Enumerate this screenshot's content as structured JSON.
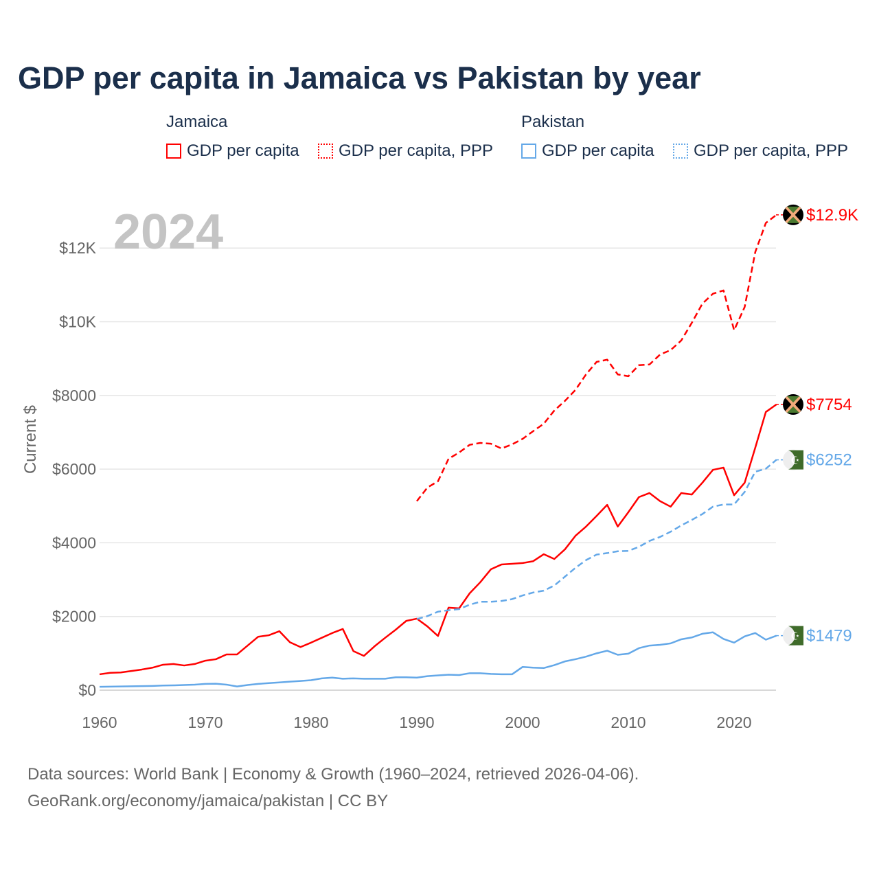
{
  "title": "GDP per capita in Jamaica vs Pakistan by year",
  "legend": {
    "jamaica": "Jamaica",
    "pakistan": "Pakistan",
    "gdp": "GDP per capita",
    "ppp": "GDP per capita, PPP"
  },
  "source": {
    "line1": "Data sources: World Bank | Economy & Growth (1960–2024, retrieved 2026-04-06).",
    "line2": "GeoRank.org/economy/jamaica/pakistan | CC BY"
  },
  "colors": {
    "jamaica": "#ff0000",
    "pakistan": "#64a8e8"
  },
  "chart_data": {
    "type": "line",
    "title": "GDP per capita in Jamaica vs Pakistan by year",
    "ylabel": "Current $",
    "xlabel": "",
    "year_label": "2024",
    "xlim": [
      1960,
      2024
    ],
    "ylim": [
      0,
      13000
    ],
    "xticks": [
      "1960",
      "1970",
      "1980",
      "1990",
      "2000",
      "2010",
      "2020"
    ],
    "yticks": [
      {
        "v": 0,
        "l": "$0"
      },
      {
        "v": 2000,
        "l": "$2000"
      },
      {
        "v": 4000,
        "l": "$4000"
      },
      {
        "v": 6000,
        "l": "$6000"
      },
      {
        "v": 8000,
        "l": "$8000"
      },
      {
        "v": 10000,
        "l": "$10K"
      },
      {
        "v": 12000,
        "l": "$12K"
      }
    ],
    "series": [
      {
        "name": "Jamaica GDP per capita",
        "country": "jamaica",
        "dashed": false,
        "start": 1960,
        "end_label": "$7754",
        "values": [
          430,
          470,
          480,
          520,
          560,
          610,
          690,
          710,
          670,
          710,
          800,
          840,
          970,
          970,
          1210,
          1450,
          1490,
          1600,
          1300,
          1170,
          1290,
          1420,
          1550,
          1660,
          1060,
          930,
          1190,
          1420,
          1640,
          1880,
          1940,
          1730,
          1470,
          2240,
          2220,
          2630,
          2930,
          3280,
          3410,
          3430,
          3450,
          3500,
          3690,
          3560,
          3820,
          4190,
          4440,
          4730,
          5030,
          4440,
          4830,
          5240,
          5350,
          5130,
          4980,
          5350,
          5310,
          5630,
          5980,
          6040,
          5290,
          5630,
          6580,
          7550,
          7754
        ]
      },
      {
        "name": "Jamaica GDP per capita, PPP",
        "country": "jamaica",
        "dashed": true,
        "start": 1990,
        "end_label": "$12.9K",
        "values": [
          5130,
          5500,
          5670,
          6280,
          6450,
          6660,
          6710,
          6690,
          6560,
          6670,
          6820,
          7030,
          7230,
          7590,
          7850,
          8150,
          8570,
          8910,
          8970,
          8570,
          8520,
          8820,
          8840,
          9110,
          9230,
          9490,
          9970,
          10490,
          10760,
          10850,
          9770,
          10400,
          11890,
          12680,
          12900
        ]
      },
      {
        "name": "Pakistan GDP per capita",
        "country": "pakistan",
        "dashed": false,
        "start": 1960,
        "end_label": "$1479",
        "values": [
          90,
          95,
          100,
          105,
          110,
          115,
          125,
          130,
          140,
          150,
          170,
          175,
          150,
          100,
          140,
          170,
          190,
          210,
          230,
          250,
          270,
          320,
          340,
          310,
          320,
          310,
          310,
          310,
          350,
          350,
          340,
          380,
          400,
          420,
          410,
          460,
          460,
          440,
          430,
          430,
          630,
          610,
          600,
          680,
          780,
          840,
          910,
          1000,
          1070,
          960,
          990,
          1140,
          1210,
          1230,
          1270,
          1380,
          1430,
          1530,
          1570,
          1390,
          1290,
          1460,
          1550,
          1370,
          1479
        ]
      },
      {
        "name": "Pakistan GDP per capita, PPP",
        "country": "pakistan",
        "dashed": true,
        "start": 1990,
        "end_label": "$6252",
        "values": [
          1930,
          2010,
          2130,
          2170,
          2200,
          2320,
          2400,
          2400,
          2420,
          2470,
          2570,
          2650,
          2700,
          2840,
          3080,
          3320,
          3530,
          3680,
          3720,
          3770,
          3780,
          3890,
          4050,
          4160,
          4300,
          4470,
          4620,
          4780,
          4980,
          5040,
          5040,
          5380,
          5930,
          6010,
          6252
        ]
      }
    ]
  }
}
